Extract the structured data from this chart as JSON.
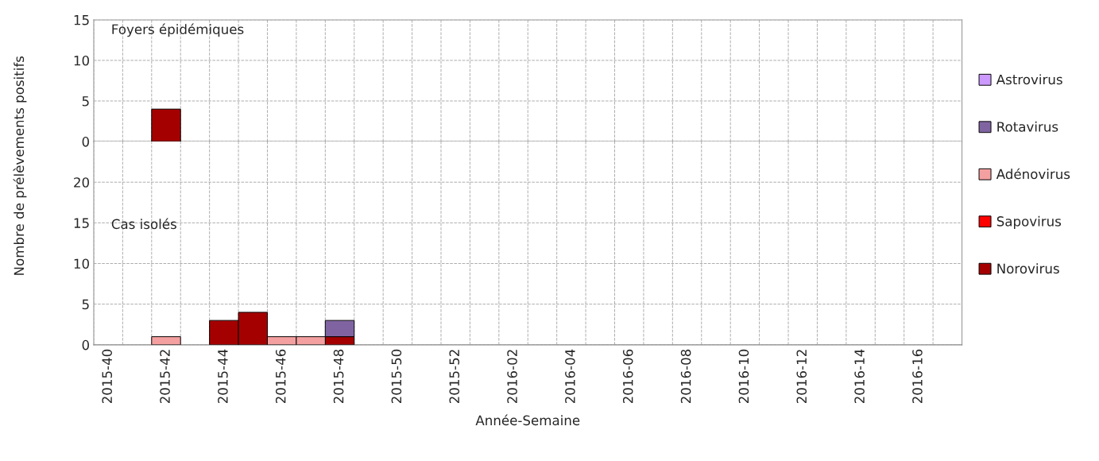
{
  "chart_data": [
    {
      "type": "bar",
      "title": "Foyers épidémiques",
      "stacked": true,
      "grid": true,
      "legend": "right",
      "tick_labels": "y",
      "categories": [
        "2015-40",
        null,
        "2015-42",
        null,
        "2015-44",
        null,
        "2015-46",
        null,
        "2015-48",
        null,
        "2015-50",
        null,
        "2015-52",
        null,
        "2016-02",
        null,
        "2016-04",
        null,
        "2016-06",
        null,
        "2016-08",
        null,
        "2016-10",
        null,
        "2016-12",
        null,
        "2016-14",
        null,
        "2016-16",
        null
      ],
      "ylim": [
        0,
        15
      ],
      "yticks": [
        0,
        5,
        10,
        15
      ],
      "ylabel": "Nombre de prélèvements positifs",
      "series": [
        {
          "name": "Norovirus",
          "color": "#a50000",
          "values": [
            null,
            null,
            4,
            null,
            null,
            null,
            null,
            null,
            null,
            null,
            null,
            null,
            null,
            null,
            null,
            null,
            null,
            null,
            null,
            null,
            null,
            null,
            null,
            null,
            null,
            null,
            null,
            null,
            null,
            null
          ]
        },
        {
          "name": "Sapovirus",
          "color": "#ff0000",
          "values": [
            null,
            null,
            null,
            null,
            null,
            null,
            null,
            null,
            null,
            null,
            null,
            null,
            null,
            null,
            null,
            null,
            null,
            null,
            null,
            null,
            null,
            null,
            null,
            null,
            null,
            null,
            null,
            null,
            null,
            null
          ]
        },
        {
          "name": "Adénovirus",
          "color": "#f4a0a0",
          "values": [
            null,
            null,
            null,
            null,
            null,
            null,
            null,
            null,
            null,
            null,
            null,
            null,
            null,
            null,
            null,
            null,
            null,
            null,
            null,
            null,
            null,
            null,
            null,
            null,
            null,
            null,
            null,
            null,
            null,
            null
          ]
        },
        {
          "name": "Rotavirus",
          "color": "#8064a2",
          "values": [
            null,
            null,
            null,
            null,
            null,
            null,
            null,
            null,
            null,
            null,
            null,
            null,
            null,
            null,
            null,
            null,
            null,
            null,
            null,
            null,
            null,
            null,
            null,
            null,
            null,
            null,
            null,
            null,
            null,
            null
          ]
        },
        {
          "name": "Astrovirus",
          "color": "#cc99ff",
          "values": [
            null,
            null,
            null,
            null,
            null,
            null,
            null,
            null,
            null,
            null,
            null,
            null,
            null,
            null,
            null,
            null,
            null,
            null,
            null,
            null,
            null,
            null,
            null,
            null,
            null,
            null,
            null,
            null,
            null,
            null
          ]
        }
      ]
    },
    {
      "type": "bar",
      "title": "Cas isolés",
      "stacked": true,
      "grid": true,
      "xlabel": "Année-Semaine",
      "categories": [
        "2015-40",
        null,
        "2015-42",
        null,
        "2015-44",
        null,
        "2015-46",
        null,
        "2015-48",
        null,
        "2015-50",
        null,
        "2015-52",
        null,
        "2016-02",
        null,
        "2016-04",
        null,
        "2016-06",
        null,
        "2016-08",
        null,
        "2016-10",
        null,
        "2016-12",
        null,
        "2016-14",
        null,
        "2016-16",
        null
      ],
      "ylim": [
        0,
        25
      ],
      "yticks": [
        0,
        5,
        10,
        15,
        20
      ],
      "series": [
        {
          "color": "#a50000",
          "values": [
            null,
            null,
            null,
            null,
            3,
            4,
            null,
            null,
            1,
            null,
            null,
            null,
            null,
            null,
            null,
            null,
            null,
            null,
            null,
            null,
            null,
            null,
            null,
            null,
            null,
            null,
            null,
            null,
            null,
            null
          ]
        },
        {
          "color": "#f4a0a0",
          "values": [
            null,
            null,
            1,
            null,
            null,
            null,
            1,
            1,
            null,
            null,
            null,
            null,
            null,
            null,
            null,
            null,
            null,
            null,
            null,
            null,
            null,
            null,
            null,
            null,
            null,
            null,
            null,
            null,
            null,
            null
          ]
        },
        {
          "color": "#8064a2",
          "values": [
            null,
            null,
            null,
            null,
            null,
            null,
            null,
            null,
            2,
            null,
            null,
            null,
            null,
            null,
            null,
            null,
            null,
            null,
            null,
            null,
            null,
            null,
            null,
            null,
            null,
            null,
            null,
            null,
            null,
            null
          ]
        }
      ]
    }
  ]
}
